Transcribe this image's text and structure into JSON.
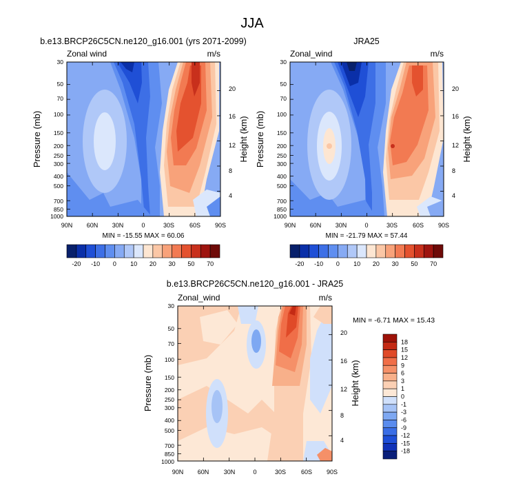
{
  "title": "JJA",
  "colors": {
    "main_scale": [
      "#08206b",
      "#0a2fa8",
      "#1f4fd6",
      "#3d6fe6",
      "#5f8ef0",
      "#86aaf4",
      "#b0c8f8",
      "#dbe7fc",
      "#fde6d2",
      "#fbc7a6",
      "#f8a27a",
      "#f27a52",
      "#e4522f",
      "#c8301c",
      "#9e140f",
      "#6e0a08"
    ],
    "diff_scale": [
      "#0a1f7a",
      "#1032b8",
      "#1e4fd8",
      "#3a6ee6",
      "#5a8cee",
      "#7ea8f2",
      "#a6c3f6",
      "#d0e0fb",
      "#fde8d6",
      "#fbd0b4",
      "#f8b08a",
      "#f59068",
      "#f06e48",
      "#e04a28",
      "#c42a14",
      "#9e1208"
    ]
  },
  "chart_data": [
    {
      "type": "heatmap",
      "title": "b.e13.BRCP26C5CN.ne120_g16.001 (yrs 2071-2099)",
      "field_label": "Zonal wind",
      "units": "m/s",
      "xlabel": "",
      "ylabel": "Pressure (mb)",
      "y2label": "Height (km)",
      "x_ticks": [
        "90N",
        "60N",
        "30N",
        "0",
        "30S",
        "60S",
        "90S"
      ],
      "y_ticks": [
        "30",
        "50",
        "70",
        "100",
        "150",
        "200",
        "250",
        "300",
        "400",
        "500",
        "700",
        "850",
        "1000"
      ],
      "y_tick_values": [
        30,
        50,
        70,
        100,
        150,
        200,
        250,
        300,
        400,
        500,
        700,
        850,
        1000
      ],
      "height_ticks": [
        "4",
        "8",
        "12",
        "16",
        "20"
      ],
      "height_values": [
        4,
        8,
        12,
        16,
        20
      ],
      "ylim": [
        1000,
        30
      ],
      "xlim": [
        90,
        -90
      ],
      "min": -15.55,
      "max": 60.06,
      "stats_text": "MIN = -15.55  MAX = 60.06",
      "cells": [
        {
          "lat": 55,
          "p": 520,
          "v": -2.5
        },
        {
          "lat": 40,
          "p": 200,
          "v": -4.5
        },
        {
          "lat": 40,
          "p": 200,
          "v": -2.5
        },
        {
          "lat": 40,
          "p": 210,
          "v": -0.5
        },
        {
          "lat": 10,
          "p": 80,
          "v": -7.5
        },
        {
          "lat": 15,
          "p": 35,
          "v": -10
        },
        {
          "lat": -40,
          "p": 200,
          "v": 15
        },
        {
          "lat": -42,
          "p": 150,
          "v": 25
        },
        {
          "lat": -45,
          "p": 130,
          "v": 35
        },
        {
          "lat": -55,
          "p": 60,
          "v": 45
        }
      ]
    },
    {
      "type": "heatmap",
      "title": "JRA25",
      "field_label": "Zonal_wind",
      "units": "m/s",
      "xlabel": "",
      "ylabel": "Pressure (mb)",
      "y2label": "Height (km)",
      "x_ticks": [
        "90N",
        "60N",
        "30N",
        "0",
        "30S",
        "60S",
        "90S"
      ],
      "y_ticks": [
        "30",
        "50",
        "70",
        "100",
        "150",
        "200",
        "250",
        "300",
        "400",
        "500",
        "700",
        "850",
        "1000"
      ],
      "y_tick_values": [
        30,
        50,
        70,
        100,
        150,
        200,
        250,
        300,
        400,
        500,
        700,
        850,
        1000
      ],
      "height_ticks": [
        "4",
        "8",
        "12",
        "16",
        "20"
      ],
      "height_values": [
        4,
        8,
        12,
        16,
        20
      ],
      "ylim": [
        1000,
        30
      ],
      "xlim": [
        90,
        -90
      ],
      "min": -21.79,
      "max": 57.44,
      "stats_text": "MIN = -21.79  MAX = 57.44",
      "cells": [
        {
          "lat": 55,
          "p": 500,
          "v": -2.5
        },
        {
          "lat": 42,
          "p": 200,
          "v": -4.5
        },
        {
          "lat": 42,
          "p": 200,
          "v": -2.5
        },
        {
          "lat": 42,
          "p": 210,
          "v": -0.5
        },
        {
          "lat": 10,
          "p": 70,
          "v": -10
        },
        {
          "lat": 20,
          "p": 35,
          "v": -17
        },
        {
          "lat": -40,
          "p": 200,
          "v": 15
        },
        {
          "lat": -42,
          "p": 170,
          "v": 25
        },
        {
          "lat": -48,
          "p": 120,
          "v": 35
        },
        {
          "lat": -58,
          "p": 60,
          "v": 45
        }
      ]
    },
    {
      "type": "heatmap",
      "title": "b.e13.BRCP26C5CN.ne120_g16.001 - JRA25",
      "field_label": "Zonal_wind",
      "units": "m/s",
      "xlabel": "",
      "ylabel": "Pressure (mb)",
      "y2label": "Height (km)",
      "x_ticks": [
        "90N",
        "60N",
        "30N",
        "0",
        "30S",
        "60S",
        "90S"
      ],
      "y_ticks": [
        "30",
        "50",
        "70",
        "100",
        "150",
        "200",
        "250",
        "300",
        "400",
        "500",
        "700",
        "850",
        "1000"
      ],
      "y_tick_values": [
        30,
        50,
        70,
        100,
        150,
        200,
        250,
        300,
        400,
        500,
        700,
        850,
        1000
      ],
      "height_ticks": [
        "4",
        "8",
        "12",
        "16",
        "20"
      ],
      "height_values": [
        4,
        8,
        12,
        16,
        20
      ],
      "ylim": [
        1000,
        30
      ],
      "xlim": [
        90,
        -90
      ],
      "min": -6.71,
      "max": 15.43,
      "stats_text": "MIN = -6.71  MAX = 15.43",
      "cells": [
        {
          "lat": 5,
          "p": 70,
          "v": -2
        },
        {
          "lat": 35,
          "p": 330,
          "v": -3
        },
        {
          "lat": -37,
          "p": 90,
          "v": 4
        },
        {
          "lat": -38,
          "p": 60,
          "v": 8
        },
        {
          "lat": -40,
          "p": 45,
          "v": 12
        },
        {
          "lat": -60,
          "p": 200,
          "v": -1
        }
      ]
    }
  ],
  "colorbar_main": {
    "labels": [
      "-20",
      "-10",
      "0",
      "10",
      "20",
      "30",
      "50",
      "70"
    ]
  },
  "colorbar_diff": {
    "labels": [
      "18",
      "15",
      "12",
      "9",
      "6",
      "3",
      "1",
      "0",
      "-1",
      "-3",
      "-6",
      "-9",
      "-12",
      "-15",
      "-18"
    ]
  }
}
